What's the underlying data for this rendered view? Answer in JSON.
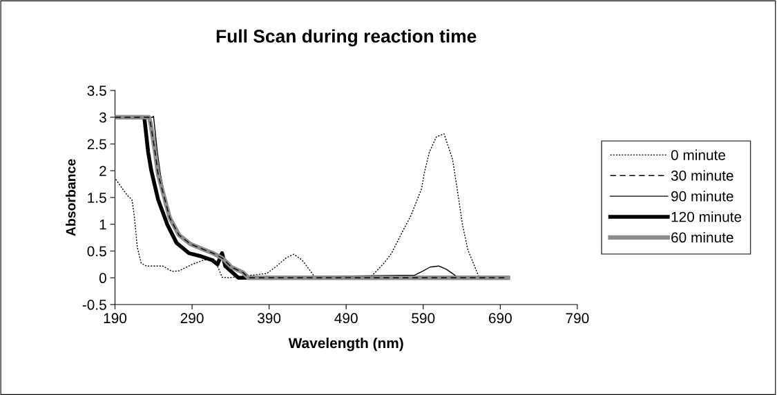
{
  "chart_data": {
    "type": "line",
    "title": "Full Scan during reaction time",
    "xlabel": "Wavelength (nm)",
    "ylabel": "Absorbance",
    "xlim": [
      190,
      790
    ],
    "xticks": [
      190,
      290,
      390,
      490,
      590,
      690,
      790
    ],
    "ylim": [
      -0.5,
      3.5
    ],
    "yticks": [
      -0.5,
      0,
      0.5,
      1,
      1.5,
      2,
      2.5,
      3,
      3.5
    ],
    "grid": false,
    "legend": "right",
    "series": [
      {
        "name": "0 minute",
        "color": "#000000",
        "line_style": "dotted",
        "x": [
          191,
          206,
          212,
          215,
          219,
          224,
          231,
          252,
          264,
          273,
          290,
          305,
          318,
          323,
          329,
          338,
          387,
          400,
          412,
          422,
          433,
          446,
          450,
          523,
          539,
          549,
          563,
          574,
          588,
          591,
          598,
          607,
          617,
          628,
          634,
          641,
          648,
          662,
          667,
          700
        ],
        "values": [
          1.84,
          1.54,
          1.46,
          1.16,
          0.57,
          0.27,
          0.22,
          0.22,
          0.12,
          0.13,
          0.25,
          0.33,
          0.35,
          0.22,
          0.01,
          0,
          0.08,
          0.22,
          0.37,
          0.44,
          0.33,
          0.08,
          0,
          0.03,
          0.27,
          0.46,
          0.86,
          1.16,
          1.67,
          1.93,
          2.35,
          2.63,
          2.69,
          2.22,
          1.67,
          0.99,
          0.52,
          0.03,
          0,
          0
        ]
      },
      {
        "name": "30 minute",
        "color": "#000000",
        "line_style": "dashed",
        "x": [
          190,
          234,
          236,
          242,
          246,
          254,
          261,
          273,
          288,
          303,
          317,
          325,
          330,
          341,
          356,
          363,
          700
        ],
        "values": [
          3,
          3,
          2.9,
          2.35,
          1.93,
          1.5,
          1.12,
          0.8,
          0.63,
          0.54,
          0.46,
          0.4,
          0.36,
          0.2,
          0.1,
          0,
          0
        ]
      },
      {
        "name": "90 minute",
        "color": "#000000",
        "line_style": "solid",
        "x": [
          190,
          239,
          240,
          245,
          249,
          255,
          263,
          275,
          290,
          304,
          317,
          323,
          329,
          333,
          344,
          353,
          579,
          589,
          599,
          610,
          620,
          631,
          634,
          700
        ],
        "values": [
          3,
          3,
          3.02,
          2.35,
          1.93,
          1.5,
          1.12,
          0.8,
          0.63,
          0.54,
          0.46,
          0.4,
          0.48,
          0.25,
          0.1,
          0,
          0.05,
          0.12,
          0.2,
          0.22,
          0.16,
          0.05,
          0,
          0
        ]
      },
      {
        "name": "120 minute",
        "color": "#000000",
        "line_style": "solid",
        "x": [
          190,
          228,
          233,
          237,
          246,
          258,
          270,
          286,
          302,
          316,
          323,
          329,
          333,
          350,
          700
        ],
        "values": [
          3,
          3,
          2.35,
          2.01,
          1.46,
          0.99,
          0.65,
          0.46,
          0.4,
          0.33,
          0.25,
          0.46,
          0.22,
          0,
          0
        ]
      },
      {
        "name": "60 minute",
        "color": "#8c8c8c",
        "line_style": "solid",
        "x": [
          190,
          234,
          236,
          242,
          246,
          254,
          261,
          273,
          288,
          303,
          317,
          325,
          330,
          341,
          356,
          363,
          700
        ],
        "values": [
          3,
          3,
          2.9,
          2.35,
          1.93,
          1.5,
          1.12,
          0.8,
          0.63,
          0.54,
          0.46,
          0.4,
          0.36,
          0.2,
          0.1,
          0,
          0
        ]
      }
    ]
  }
}
